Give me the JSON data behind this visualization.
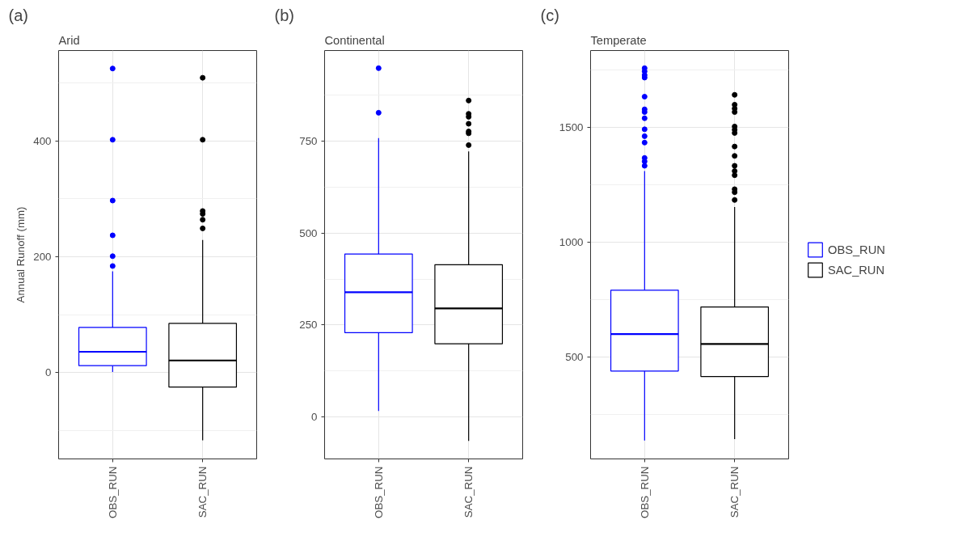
{
  "chart_data": [
    {
      "type": "box",
      "title": "(a)",
      "subtitle": "Arid",
      "ylabel": "Annual Runoff (mm)",
      "categories": [
        "OBS_RUN",
        "SAC_RUN"
      ],
      "ylim": [
        -149,
        556
      ],
      "yticks": [
        0,
        200,
        400
      ],
      "grid": true,
      "series": [
        {
          "color": "#0000ff",
          "boxes": [
            {
              "low": 1,
              "q1": 12,
              "median": 36,
              "q3": 78,
              "high": 175,
              "outliers": [
                184,
                201,
                237,
                297,
                402,
                525
              ]
            },
            null
          ]
        },
        {
          "color": "#000000",
          "boxes": [
            null,
            {
              "low": -117,
              "q1": -25,
              "median": 21,
              "q3": 85,
              "high": 229,
              "outliers": [
                249,
                264,
                274,
                279,
                402,
                509
              ]
            }
          ]
        }
      ]
    },
    {
      "type": "box",
      "title": "(b)",
      "subtitle": "Continental",
      "categories": [
        "OBS_RUN",
        "SAC_RUN"
      ],
      "ylim": [
        -114,
        996
      ],
      "yticks": [
        0,
        250,
        500,
        750
      ],
      "grid": true,
      "series": [
        {
          "color": "#0000ff",
          "boxes": [
            {
              "low": 16,
              "q1": 229,
              "median": 339,
              "q3": 443,
              "high": 758,
              "outliers": [
                827,
                948
              ]
            },
            null
          ]
        },
        {
          "color": "#000000",
          "boxes": [
            null,
            {
              "low": -65,
              "q1": 199,
              "median": 295,
              "q3": 414,
              "high": 722,
              "outliers": [
                739,
                771,
                776,
                797,
                816,
                824,
                860
              ]
            }
          ]
        }
      ]
    },
    {
      "type": "box",
      "title": "(c)",
      "subtitle": "Temperate",
      "categories": [
        "OBS_RUN",
        "SAC_RUN"
      ],
      "ylim": [
        55,
        1834
      ],
      "yticks": [
        500,
        1000,
        1500
      ],
      "grid": true,
      "legend": "right",
      "series": [
        {
          "name": "OBS_RUN",
          "color": "#0000ff",
          "boxes": [
            {
              "low": 135,
              "q1": 438,
              "median": 599,
              "q3": 790,
              "high": 1309,
              "outliers": [
                1332,
                1351,
                1366,
                1433,
                1461,
                1491,
                1539,
                1566,
                1578,
                1633,
                1716,
                1727,
                1743,
                1757
              ]
            },
            null
          ]
        },
        {
          "name": "SAC_RUN",
          "color": "#000000",
          "boxes": [
            null,
            {
              "low": 141,
              "q1": 414,
              "median": 556,
              "q3": 717,
              "high": 1152,
              "outliers": [
                1183,
                1217,
                1230,
                1291,
                1309,
                1332,
                1375,
                1416,
                1475,
                1489,
                1503,
                1566,
                1581,
                1598,
                1641
              ]
            }
          ]
        }
      ]
    }
  ]
}
